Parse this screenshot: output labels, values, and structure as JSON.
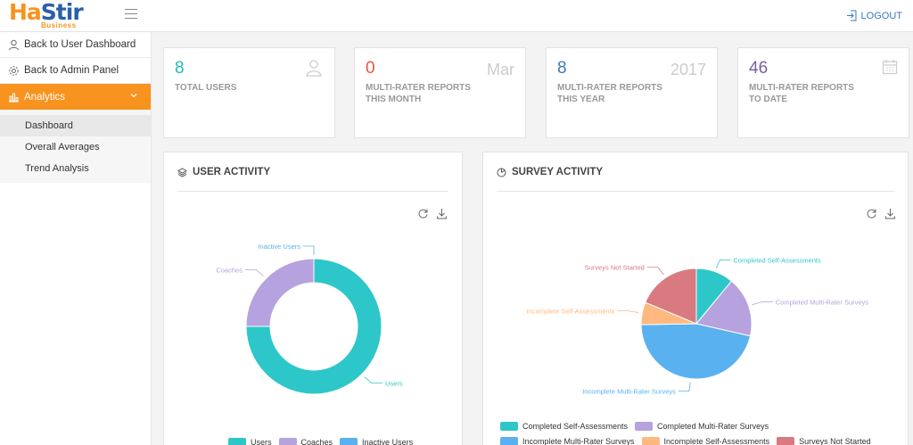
{
  "header": {
    "logo_main_a": "Ha",
    "logo_main_b": "Stir",
    "logo_sub": "Business",
    "logout": "LOGOUT"
  },
  "sidebar": {
    "items": [
      {
        "label": "Back to User Dashboard",
        "icon": "user-icon"
      },
      {
        "label": "Back to Admin Panel",
        "icon": "gear-icon"
      },
      {
        "label": "Analytics",
        "icon": "bar-chart-icon"
      }
    ],
    "sub_items": [
      "Dashboard",
      "Overall Averages",
      "Trend Analysis"
    ]
  },
  "stats": [
    {
      "value": "8",
      "label_1": "TOTAL USERS",
      "label_2": "",
      "corner": "",
      "color": "#26b8b8"
    },
    {
      "value": "0",
      "label_1": "MULTI-RATER REPORTS",
      "label_2": "THIS MONTH",
      "corner": "Mar",
      "color": "#e8553e"
    },
    {
      "value": "8",
      "label_1": "MULTI-RATER REPORTS",
      "label_2": "THIS YEAR",
      "corner": "2017",
      "color": "#3a78c3"
    },
    {
      "value": "46",
      "label_1": "MULTI-RATER REPORTS",
      "label_2": "TO DATE",
      "corner": "",
      "color": "#7b5ea7"
    }
  ],
  "user_activity": {
    "title": "USER ACTIVITY",
    "legend": [
      "Users",
      "Coaches",
      "Inactive Users"
    ]
  },
  "survey_activity": {
    "title": "SURVEY ACTIVITY",
    "legend": [
      "Completed Self-Assessments",
      "Completed Multi-Rater Surveys",
      "Incomplete Multi-Rater Surveys",
      "Incomplete Self-Assessments",
      "Surveys Not Started"
    ]
  },
  "chart_data": [
    {
      "type": "pie",
      "subtype": "donut",
      "labels": [
        "Users",
        "Coaches",
        "Inactive Users"
      ],
      "values": [
        6,
        2,
        0
      ],
      "colors": [
        "#2ec7c9",
        "#b6a2de",
        "#5ab1ef"
      ]
    },
    {
      "type": "pie",
      "labels": [
        "Completed Self-Assessments",
        "Completed Multi-Rater Surveys",
        "Incomplete Multi-Rater Surveys",
        "Incomplete Self-Assessments",
        "Surveys Not Started"
      ],
      "values": [
        10,
        16,
        42,
        6,
        17
      ],
      "colors": [
        "#2ec7c9",
        "#b6a2de",
        "#5ab1ef",
        "#ffb980",
        "#d87a80"
      ]
    }
  ]
}
